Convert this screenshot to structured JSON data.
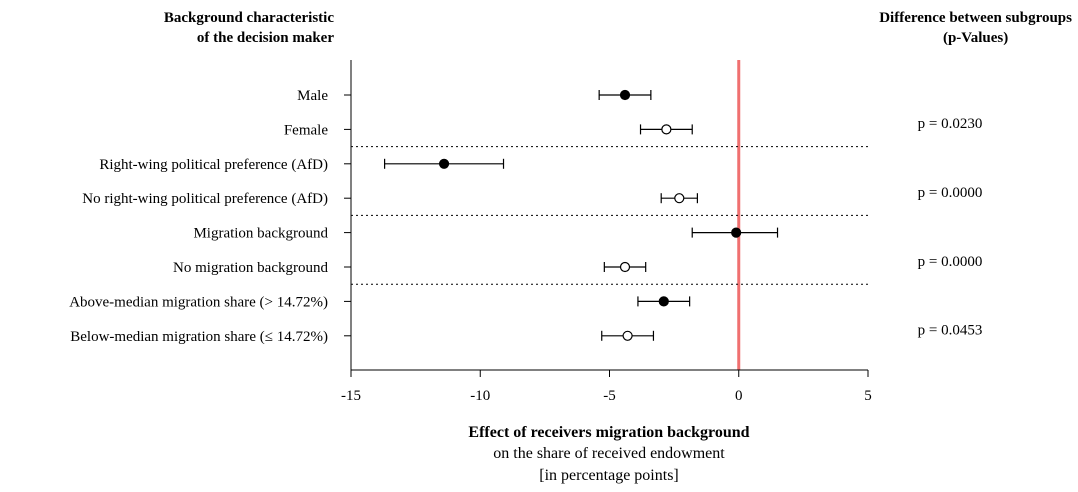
{
  "header": {
    "left_line1": "Background characteristic",
    "left_line2": "of the decision maker",
    "right_line1": "Difference between subgroups",
    "right_line2": "(p-Values)"
  },
  "chart_data": {
    "type": "scatter",
    "subtype": "coefficient plot with confidence intervals",
    "x_axis": {
      "title": "Effect of receivers migration background",
      "title_line2": "on the share of received endowment",
      "title_line3": "[in percentage points]",
      "range": [
        -15,
        5
      ],
      "ticks": [
        -15,
        -10,
        -5,
        0,
        5
      ],
      "tick_labels": [
        "-15",
        "-10",
        "-5",
        "0",
        "5"
      ]
    },
    "reference_line": {
      "x": 0,
      "color": "#f07070"
    },
    "rows": [
      {
        "label": "Male",
        "estimate": -4.4,
        "ci": [
          -5.4,
          -3.4
        ],
        "marker": "filled"
      },
      {
        "label": "Female",
        "estimate": -2.8,
        "ci": [
          -3.8,
          -1.8
        ],
        "marker": "hollow"
      },
      {
        "label": "Right-wing political preference (AfD)",
        "estimate": -11.4,
        "ci": [
          -13.7,
          -9.1
        ],
        "marker": "filled"
      },
      {
        "label": "No right-wing political preference (AfD)",
        "estimate": -2.3,
        "ci": [
          -3.0,
          -1.6
        ],
        "marker": "hollow"
      },
      {
        "label": "Migration background",
        "estimate": -0.1,
        "ci": [
          -1.8,
          1.5
        ],
        "marker": "filled"
      },
      {
        "label": "No migration background",
        "estimate": -4.4,
        "ci": [
          -5.2,
          -3.6
        ],
        "marker": "hollow"
      },
      {
        "label": "Above-median migration share (> 14.72%)",
        "estimate": -2.9,
        "ci": [
          -3.9,
          -1.9
        ],
        "marker": "filled"
      },
      {
        "label": "Below-median migration share (≤ 14.72%)",
        "estimate": -4.3,
        "ci": [
          -5.3,
          -3.3
        ],
        "marker": "hollow"
      }
    ],
    "groups": [
      {
        "rows": [
          0,
          1
        ],
        "p_value": "p = 0.0230"
      },
      {
        "rows": [
          2,
          3
        ],
        "p_value": "p = 0.0000"
      },
      {
        "rows": [
          4,
          5
        ],
        "p_value": "p = 0.0000"
      },
      {
        "rows": [
          6,
          7
        ],
        "p_value": "p = 0.0453"
      }
    ],
    "separators": "dotted lines between groups",
    "grid": false
  }
}
